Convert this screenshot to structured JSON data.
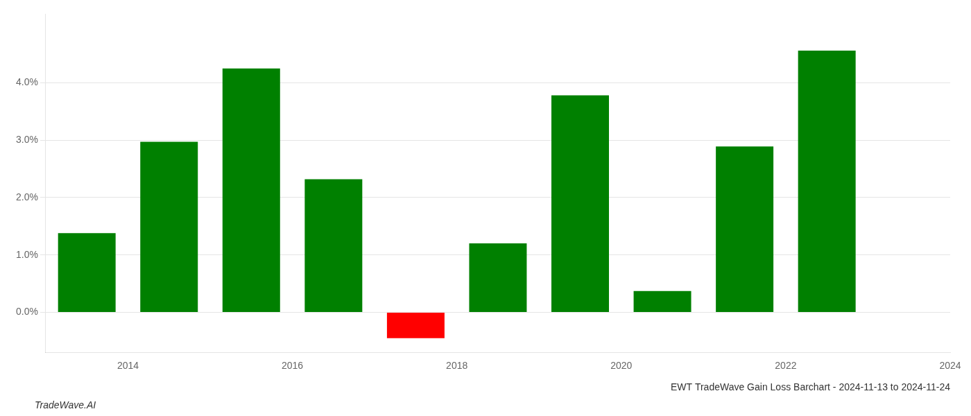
{
  "chart_data": {
    "type": "bar",
    "title": "EWT TradeWave Gain Loss Barchart - 2024-11-13 to 2024-11-24",
    "annotations": [
      "TradeWave.AI"
    ],
    "x": [
      2013.5,
      2014.5,
      2015.5,
      2016.5,
      2017.5,
      2018.5,
      2019.5,
      2020.5,
      2021.5,
      2022.5
    ],
    "values": [
      0.0138,
      0.0297,
      0.0425,
      0.0232,
      -0.0045,
      0.012,
      0.0378,
      0.0037,
      0.0289,
      0.0456
    ],
    "colors": [
      "#008000",
      "#008000",
      "#008000",
      "#008000",
      "#ff0000",
      "#008000",
      "#008000",
      "#008000",
      "#008000",
      "#008000"
    ],
    "xlim": [
      2013.0,
      2024.0
    ],
    "xticks": [
      2014,
      2016,
      2018,
      2020,
      2022,
      2024
    ],
    "ylim": [
      -0.007,
      0.052
    ],
    "yticks": [
      {
        "value": 0.0,
        "label": "0.0%"
      },
      {
        "value": 0.01,
        "label": "1.0%"
      },
      {
        "value": 0.02,
        "label": "2.0%"
      },
      {
        "value": 0.03,
        "label": "3.0%"
      },
      {
        "value": 0.04,
        "label": "4.0%"
      }
    ],
    "grid": true
  }
}
